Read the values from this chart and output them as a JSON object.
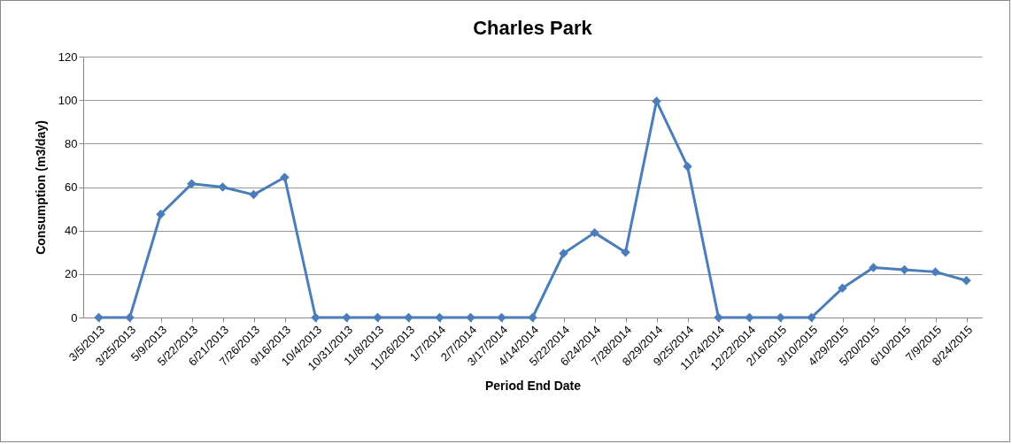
{
  "chart_data": {
    "type": "line",
    "title": "Charles Park",
    "xlabel": "Period End Date",
    "ylabel": "Consumption (m3/day)",
    "categories": [
      "3/5/2013",
      "3/25/2013",
      "5/9/2013",
      "5/22/2013",
      "6/21/2013",
      "7/26/2013",
      "9/16/2013",
      "10/4/2013",
      "10/31/2013",
      "11/8/2013",
      "11/26/2013",
      "1/7/2014",
      "2/7/2014",
      "3/17/2014",
      "4/14/2014",
      "5/22/2014",
      "6/24/2014",
      "7/28/2014",
      "8/29/2014",
      "9/25/2014",
      "11/24/2014",
      "12/22/2014",
      "2/16/2015",
      "3/10/2015",
      "4/29/2015",
      "5/20/2015",
      "6/10/2015",
      "7/9/2015",
      "8/24/2015"
    ],
    "series": [
      {
        "color": "#4a7ebb",
        "values": [
          0,
          0,
          47.5,
          61.5,
          60,
          56.5,
          64.5,
          0,
          0,
          0,
          0,
          0,
          0,
          0,
          0,
          29.5,
          39,
          30,
          99.5,
          69.5,
          0,
          0,
          0,
          0,
          13.5,
          23,
          22,
          21,
          17
        ]
      }
    ],
    "ylim": [
      0,
      120
    ],
    "yticks": [
      0,
      20,
      40,
      60,
      80,
      100,
      120
    ],
    "grid": "y",
    "marker": "diamond",
    "line_style": "solid",
    "legend": false
  }
}
